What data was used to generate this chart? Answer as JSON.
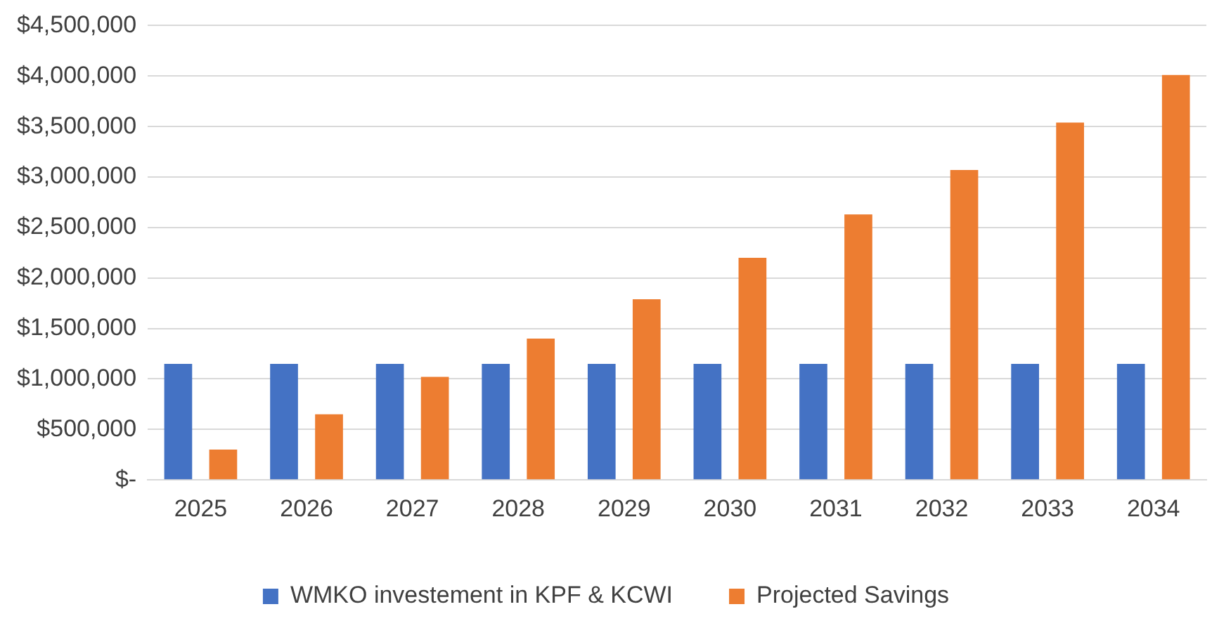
{
  "chart_data": {
    "type": "bar",
    "categories": [
      "2025",
      "2026",
      "2027",
      "2028",
      "2029",
      "2030",
      "2031",
      "2032",
      "2033",
      "2034"
    ],
    "series": [
      {
        "name": "WMKO investement in KPF & KCWI",
        "color": "#4472c4",
        "values": [
          1150000,
          1150000,
          1150000,
          1150000,
          1150000,
          1150000,
          1150000,
          1150000,
          1150000,
          1150000
        ]
      },
      {
        "name": "Projected Savings",
        "color": "#ed7d31",
        "values": [
          300000,
          650000,
          1020000,
          1400000,
          1790000,
          2200000,
          2630000,
          3070000,
          3540000,
          4010000
        ]
      }
    ],
    "ylim": [
      0,
      4500000
    ],
    "yticks": [
      {
        "value": 0,
        "label": "$-"
      },
      {
        "value": 500000,
        "label": "$500,000"
      },
      {
        "value": 1000000,
        "label": "$1,000,000"
      },
      {
        "value": 1500000,
        "label": "$1,500,000"
      },
      {
        "value": 2000000,
        "label": "$2,000,000"
      },
      {
        "value": 2500000,
        "label": "$2,500,000"
      },
      {
        "value": 3000000,
        "label": "$3,000,000"
      },
      {
        "value": 3500000,
        "label": "$3,500,000"
      },
      {
        "value": 4000000,
        "label": "$4,000,000"
      },
      {
        "value": 4500000,
        "label": "$4,500,000"
      }
    ],
    "grid": "y",
    "legend": "bottom"
  }
}
